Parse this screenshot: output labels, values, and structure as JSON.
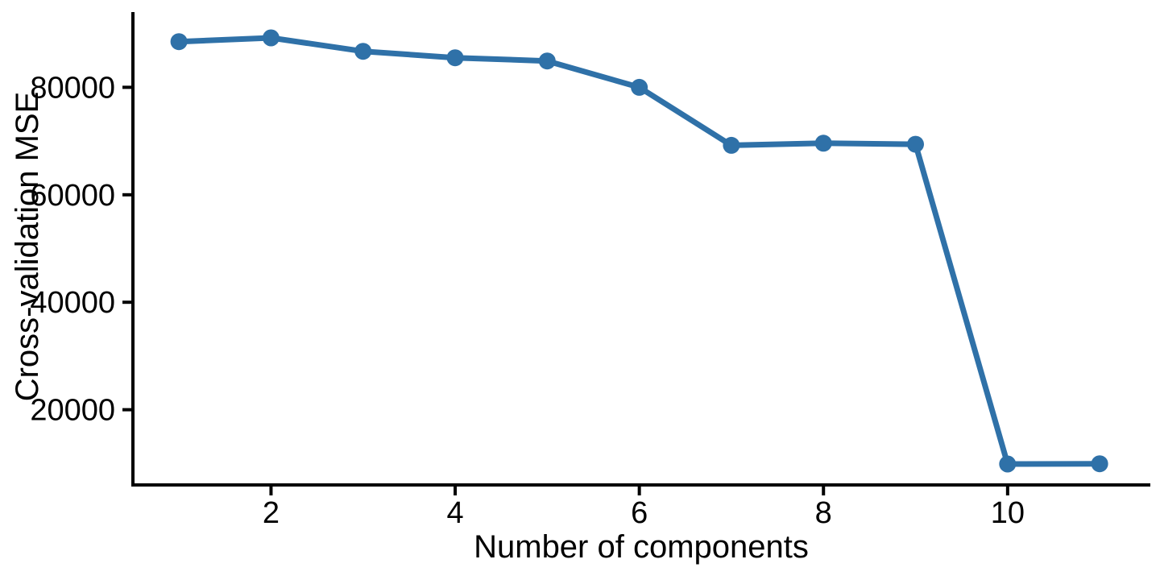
{
  "chart_data": {
    "type": "line",
    "title": "",
    "xlabel": "Number of components",
    "ylabel": "Cross-validation MSE",
    "x": [
      1,
      2,
      3,
      4,
      5,
      6,
      7,
      8,
      9,
      10,
      11
    ],
    "y": [
      88500,
      89200,
      86700,
      85500,
      84900,
      80000,
      69200,
      69600,
      69400,
      9900,
      9950
    ],
    "x_ticks": [
      2,
      4,
      6,
      8,
      10
    ],
    "y_ticks": [
      20000,
      40000,
      60000,
      80000
    ],
    "xlim": [
      0.5,
      11.55
    ],
    "ylim": [
      6000,
      94000
    ],
    "grid": false,
    "legend": "none",
    "line_color": "#2f71a8",
    "marker_color": "#2f71a8",
    "axis_color": "#000000",
    "text_color": "#000000"
  }
}
